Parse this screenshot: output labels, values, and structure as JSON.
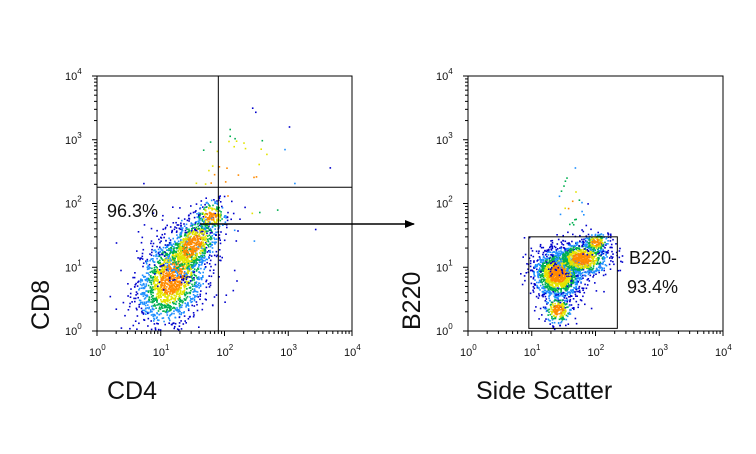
{
  "chart_data": [
    {
      "type": "scatter",
      "title": "",
      "xlabel": "CD4",
      "ylabel": "CD8",
      "x_scale": "log",
      "y_scale": "log",
      "xlim": [
        1,
        10000
      ],
      "ylim": [
        1,
        10000
      ],
      "x_tick_labels": [
        "10^0",
        "10^1",
        "10^2",
        "10^3",
        "10^4"
      ],
      "y_tick_labels": [
        "10^0",
        "10^1",
        "10^2",
        "10^3",
        "10^4"
      ],
      "quadrant_gate": {
        "x": 80,
        "y": 180
      },
      "gate_label": "96.3%",
      "gate_quadrant": "lower-left",
      "grid": false,
      "legend": "none",
      "colormap": [
        "#0000cc",
        "#1e8fff",
        "#00b050",
        "#e3e400",
        "#ff8a00"
      ],
      "clusters": [
        {
          "center": [
            15,
            7
          ],
          "spread_log10": [
            0.28,
            0.35
          ],
          "count": 1700
        },
        {
          "center": [
            30,
            22
          ],
          "spread_log10": [
            0.22,
            0.22
          ],
          "count": 700
        },
        {
          "center": [
            60,
            65
          ],
          "spread_log10": [
            0.13,
            0.13
          ],
          "count": 180
        },
        {
          "center": [
            150,
            250
          ],
          "spread_log10": [
            0.6,
            0.55
          ],
          "count": 45
        }
      ]
    },
    {
      "type": "scatter",
      "title": "",
      "xlabel": "Side Scatter",
      "ylabel": "B220",
      "x_scale": "log",
      "y_scale": "log",
      "xlim": [
        1,
        10000
      ],
      "ylim": [
        1,
        10000
      ],
      "x_tick_labels": [
        "10^0",
        "10^1",
        "10^2",
        "10^3",
        "10^4"
      ],
      "y_tick_labels": [
        "10^0",
        "10^1",
        "10^2",
        "10^3",
        "10^4"
      ],
      "gate_rect": {
        "x": [
          9,
          220
        ],
        "y": [
          1.1,
          30
        ]
      },
      "gate_label": [
        "B220-",
        "93.4%"
      ],
      "grid": false,
      "legend": "none",
      "colormap": [
        "#0000cc",
        "#1e8fff",
        "#00b050",
        "#e3e400",
        "#ff8a00"
      ],
      "clusters": [
        {
          "center": [
            25,
            8
          ],
          "spread_log10": [
            0.2,
            0.2
          ],
          "count": 1500
        },
        {
          "center": [
            60,
            14
          ],
          "spread_log10": [
            0.22,
            0.14
          ],
          "count": 800
        },
        {
          "center": [
            100,
            25
          ],
          "spread_log10": [
            0.1,
            0.08
          ],
          "count": 200
        },
        {
          "center": [
            25,
            2.2
          ],
          "spread_log10": [
            0.12,
            0.12
          ],
          "count": 220
        },
        {
          "center": [
            40,
            120
          ],
          "spread_log10": [
            0.12,
            0.3
          ],
          "count": 25
        }
      ]
    }
  ],
  "arrow": {
    "from_plot": 0,
    "to_plot": 1,
    "direction": "right"
  }
}
